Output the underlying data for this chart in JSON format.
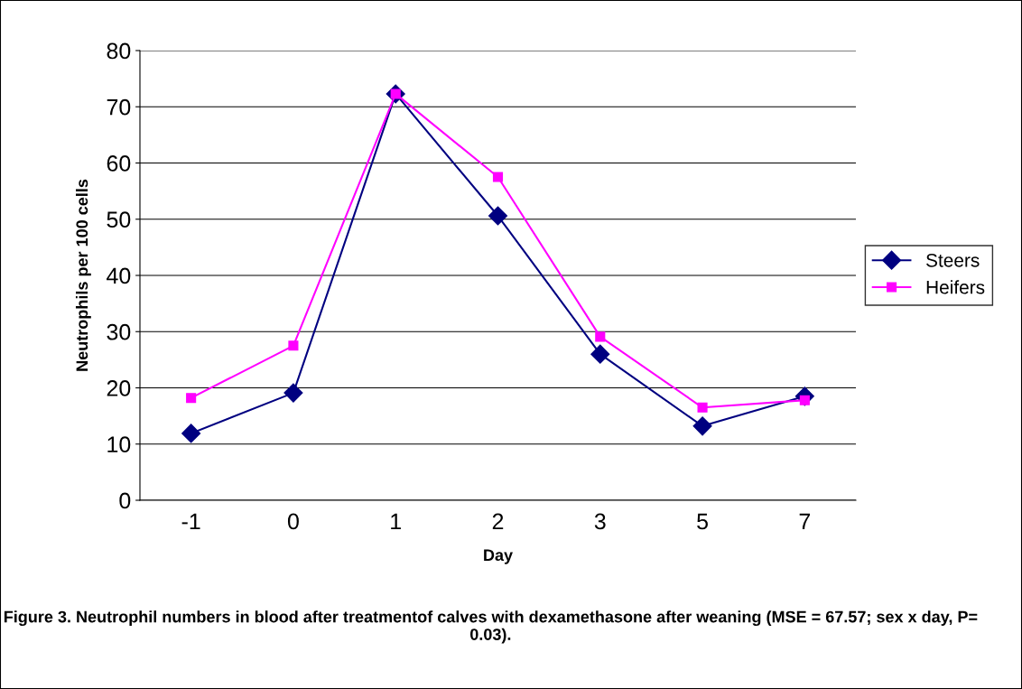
{
  "chart_data": {
    "type": "line",
    "xlabel": "Day",
    "ylabel": "Neutrophils per 100 cells",
    "categories": [
      "-1",
      "0",
      "1",
      "2",
      "3",
      "5",
      "7"
    ],
    "series": [
      {
        "name": "Steers",
        "color": "#000080",
        "marker": "diamond",
        "values": [
          11.9,
          19.1,
          72.3,
          50.6,
          26.0,
          13.2,
          18.5
        ]
      },
      {
        "name": "Heifers",
        "color": "#ff00ff",
        "marker": "square",
        "values": [
          18.2,
          27.5,
          72.3,
          57.5,
          29.1,
          16.5,
          17.8
        ]
      }
    ],
    "ylim": [
      0,
      80
    ],
    "yticks": [
      0,
      10,
      20,
      30,
      40,
      50,
      60,
      70,
      80
    ],
    "grid": "y",
    "legend": "right",
    "annotations": [
      "Figure 3. Neutrophil numbers in blood after treatmentof calves with dexamethasone after weaning (MSE = 67.57; sex x day, P= 0.03)."
    ]
  }
}
